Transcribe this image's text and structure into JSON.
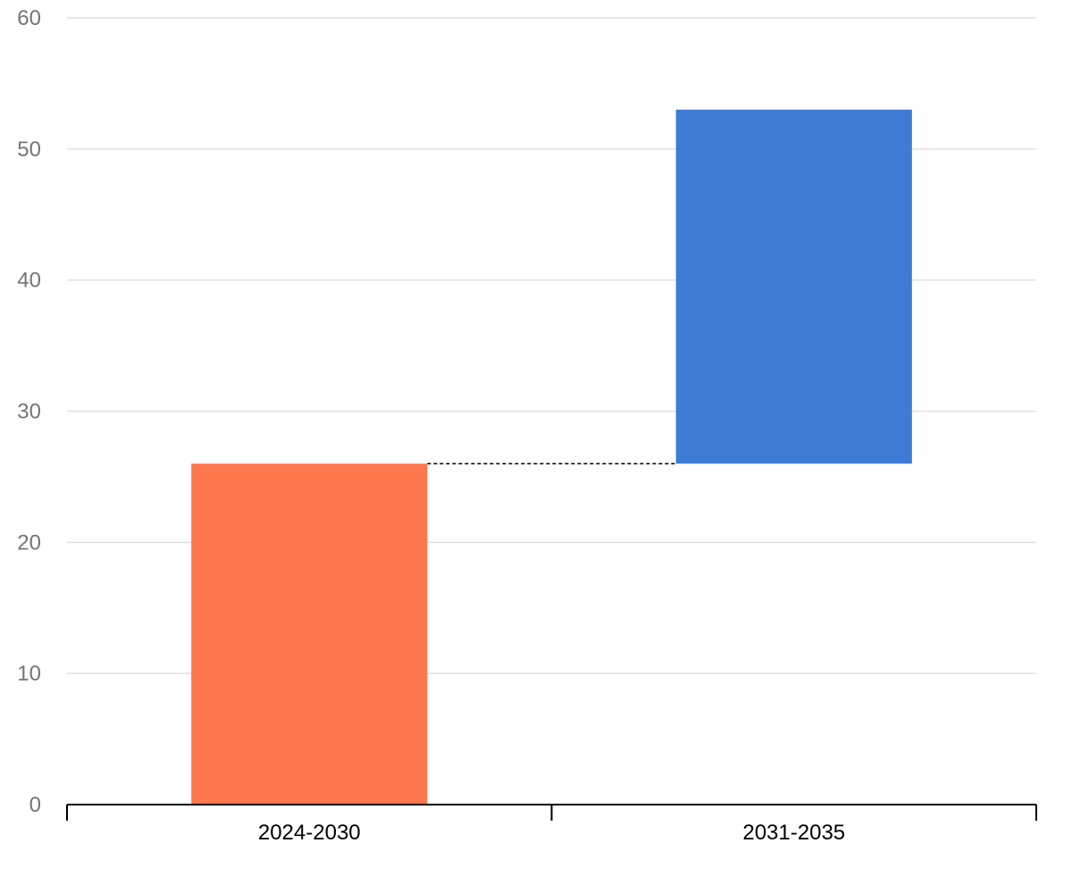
{
  "chart_data": {
    "type": "bar",
    "subtype": "waterfall",
    "title": "",
    "xlabel": "",
    "ylabel": "",
    "categories": [
      "2024-2030",
      "2031-2035"
    ],
    "values": [
      26,
      27
    ],
    "cumulative": [
      26,
      53
    ],
    "bars": [
      {
        "category": "2024-2030",
        "start": 0,
        "end": 26,
        "color": "#ff774d"
      },
      {
        "category": "2031-2035",
        "start": 26,
        "end": 53,
        "color": "#3e7bd5"
      }
    ],
    "ylim": [
      0,
      60
    ],
    "yticks": [
      0,
      10,
      20,
      30,
      40,
      50,
      60
    ],
    "grid": true,
    "legend": "none",
    "colors": {
      "increase_initial": "#ff774d",
      "increase": "#3e7bd5",
      "grid": "#e0e0e0",
      "tick_text": "#757575",
      "axis": "#000000"
    }
  }
}
